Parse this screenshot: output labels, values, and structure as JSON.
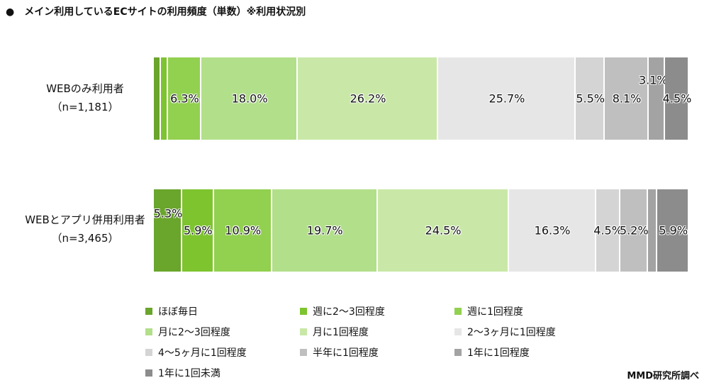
{
  "title": "メイン利用しているECサイトの利用頻度（単数）※利用状況別",
  "title_bullet": "●",
  "source": "MMD研究所調べ",
  "chart_data": {
    "type": "bar",
    "orientation": "horizontal-stacked-100",
    "title": "メイン利用しているECサイトの利用頻度（単数）※利用状況別",
    "categories": [
      {
        "name": "WEBのみ利用者",
        "n": "（n=1,181）"
      },
      {
        "name": "WEBとアプリ併用利用者",
        "n": "（n=3,465）"
      }
    ],
    "series": [
      {
        "name": "ほぼ毎日",
        "color": "#6aa52c",
        "values": [
          1.3,
          5.3
        ],
        "labels": [
          "",
          "5.3%"
        ]
      },
      {
        "name": "週に2～3回程度",
        "color": "#7dc42f",
        "values": [
          1.3,
          5.9
        ],
        "labels": [
          "",
          "5.9%"
        ]
      },
      {
        "name": "週に1回程度",
        "color": "#92d050",
        "values": [
          6.3,
          10.9
        ],
        "labels": [
          "6.3%",
          "10.9%"
        ]
      },
      {
        "name": "月に2～3回程度",
        "color": "#b2df8a",
        "values": [
          18.0,
          19.7
        ],
        "labels": [
          "18.0%",
          "19.7%"
        ]
      },
      {
        "name": "月に1回程度",
        "color": "#c9e8a7",
        "values": [
          26.2,
          24.5
        ],
        "labels": [
          "26.2%",
          "24.5%"
        ]
      },
      {
        "name": "2～3ヶ月に1回程度",
        "color": "#e6e6e6",
        "values": [
          25.7,
          16.3
        ],
        "labels": [
          "25.7%",
          "16.3%"
        ]
      },
      {
        "name": "4～5ヶ月に1回程度",
        "color": "#d4d4d4",
        "values": [
          5.5,
          4.5
        ],
        "labels": [
          "5.5%",
          "4.5%"
        ]
      },
      {
        "name": "半年に1回程度",
        "color": "#bfbfbf",
        "values": [
          8.1,
          5.2
        ],
        "labels": [
          "8.1%",
          "5.2%"
        ]
      },
      {
        "name": "1年に1回程度",
        "color": "#a3a3a3",
        "values": [
          3.1,
          1.8
        ],
        "labels": [
          "3.1%",
          ""
        ]
      },
      {
        "name": "1年に1回未満",
        "color": "#8c8c8c",
        "values": [
          4.5,
          5.9
        ],
        "labels": [
          "4.5%",
          "5.9%"
        ]
      }
    ],
    "xlim": [
      0,
      100
    ],
    "legend": "bottom"
  }
}
